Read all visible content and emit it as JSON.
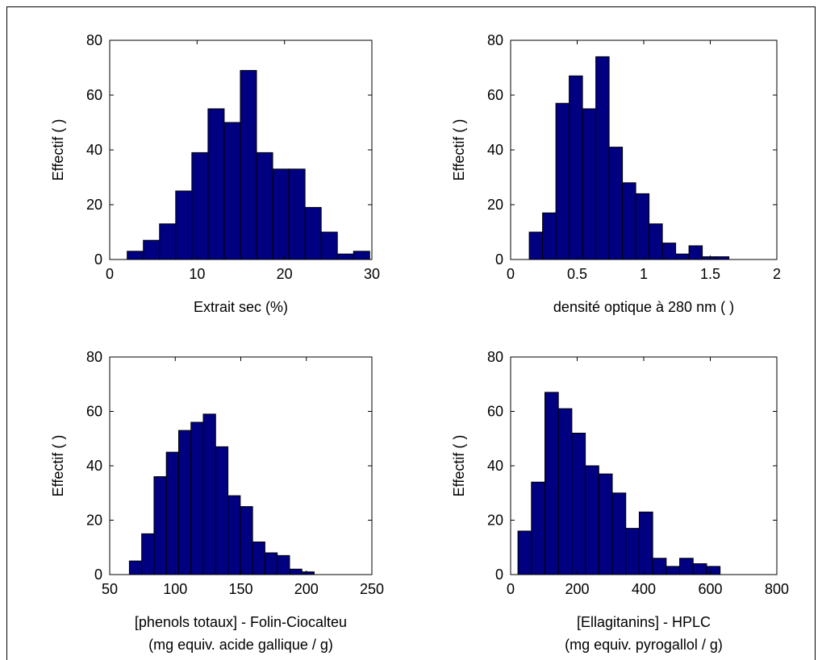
{
  "chart_data": [
    {
      "type": "histogram",
      "ylabel": "Effectif ( )",
      "xlabel": [
        "Extrait sec (%)"
      ],
      "color": "#000080",
      "bins": [
        2,
        3.85,
        5.7,
        7.55,
        9.4,
        11.25,
        13.1,
        14.95,
        16.8,
        18.65,
        20.5,
        22.35,
        24.2,
        26.05,
        27.9,
        29.75
      ],
      "values": [
        3,
        7,
        13,
        25,
        39,
        55,
        50,
        69,
        39,
        33,
        33,
        19,
        10,
        2,
        3
      ],
      "xlim": [
        0,
        30
      ],
      "xticks": [
        0,
        10,
        20,
        30
      ],
      "ylim": [
        0,
        80
      ],
      "yticks": [
        0,
        20,
        40,
        60,
        80
      ]
    },
    {
      "type": "histogram",
      "ylabel": "Effectif ( )",
      "xlabel": [
        "densité optique à 280 nm ( )"
      ],
      "color": "#000080",
      "bins": [
        0.14,
        0.24,
        0.34,
        0.44,
        0.54,
        0.64,
        0.74,
        0.84,
        0.94,
        1.04,
        1.14,
        1.24,
        1.34,
        1.44,
        1.54,
        1.64
      ],
      "values": [
        10,
        17,
        57,
        67,
        55,
        74,
        41,
        28,
        24,
        13,
        6,
        2,
        5,
        1,
        1
      ],
      "xlim": [
        0,
        2
      ],
      "xticks": [
        0,
        0.5,
        1,
        1.5,
        2
      ],
      "ylim": [
        0,
        80
      ],
      "yticks": [
        0,
        20,
        40,
        60,
        80
      ]
    },
    {
      "type": "histogram",
      "ylabel": "Effectif ( )",
      "xlabel": [
        "[phenols totaux] - Folin-Ciocalteu",
        "(mg equiv. acide gallique / g)"
      ],
      "color": "#000080",
      "bins": [
        65,
        74.4,
        83.8,
        93.2,
        102.6,
        112,
        121.4,
        130.8,
        140.2,
        149.6,
        159,
        168.4,
        177.8,
        187.2,
        196.6,
        206
      ],
      "values": [
        5,
        15,
        36,
        45,
        53,
        56,
        59,
        47,
        29,
        25,
        12,
        8,
        7,
        2,
        1
      ],
      "xlim": [
        50,
        250
      ],
      "xticks": [
        50,
        100,
        150,
        200,
        250
      ],
      "ylim": [
        0,
        80
      ],
      "yticks": [
        0,
        20,
        40,
        60,
        80
      ]
    },
    {
      "type": "histogram",
      "ylabel": "Effectif ( )",
      "xlabel": [
        "[Ellagitanins] - HPLC",
        "(mg equiv. pyrogallol / g)"
      ],
      "color": "#000080",
      "bins": [
        22,
        62.5,
        103,
        143.5,
        184,
        224.5,
        265,
        305.5,
        346,
        386.5,
        427,
        467.5,
        508,
        548.5,
        589,
        629.5
      ],
      "values": [
        16,
        34,
        67,
        61,
        52,
        40,
        37,
        30,
        17,
        23,
        6,
        3,
        6,
        4,
        3
      ],
      "xlim": [
        0,
        800
      ],
      "xticks": [
        0,
        200,
        400,
        600,
        800
      ],
      "ylim": [
        0,
        80
      ],
      "yticks": [
        0,
        20,
        40,
        60,
        80
      ]
    }
  ]
}
